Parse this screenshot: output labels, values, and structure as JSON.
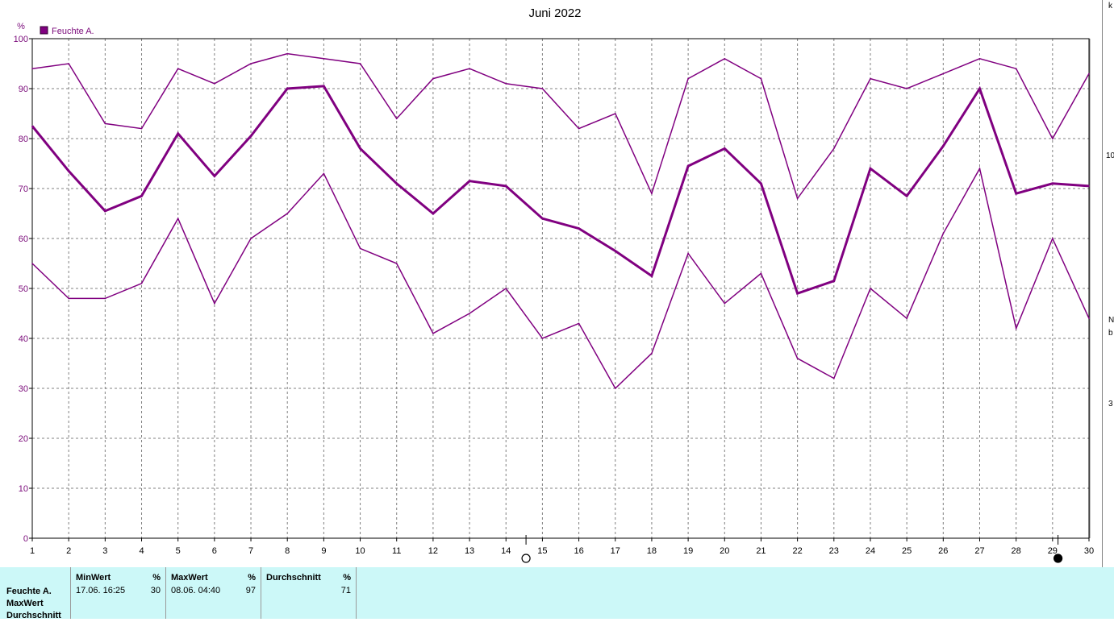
{
  "chart_data": {
    "type": "line",
    "title": "Juni 2022",
    "ylabel": "%",
    "ylim": [
      0,
      100
    ],
    "yticks": [
      0,
      10,
      20,
      30,
      40,
      50,
      60,
      70,
      80,
      90,
      100
    ],
    "x": [
      1,
      2,
      3,
      4,
      5,
      6,
      7,
      8,
      9,
      10,
      11,
      12,
      13,
      14,
      15,
      16,
      17,
      18,
      19,
      20,
      21,
      22,
      23,
      24,
      25,
      26,
      27,
      28,
      29,
      30
    ],
    "xlim": [
      1,
      30
    ],
    "grid": true,
    "legend": {
      "placement": "top-left",
      "entries": [
        "Feuchte A."
      ]
    },
    "color": "#800080",
    "series": [
      {
        "name": "Feuchte A.",
        "values": [
          55,
          48,
          48,
          51,
          64,
          47,
          60,
          65,
          73,
          58,
          55,
          41,
          45,
          50,
          40,
          43,
          30,
          37,
          57,
          47,
          53,
          36,
          32,
          50,
          44,
          61,
          74,
          42,
          60,
          44
        ],
        "width": 1.5
      },
      {
        "name": "Feuchte A.",
        "values": [
          94,
          95,
          83,
          82,
          94,
          91,
          95,
          97,
          96,
          95,
          84,
          92,
          94,
          91,
          90,
          82,
          85,
          69,
          92,
          96,
          92,
          68,
          78,
          92,
          90,
          93,
          96,
          94,
          80,
          93
        ],
        "width": 1.5
      },
      {
        "name": "Feuchte A.",
        "values": [
          82.5,
          73.5,
          65.5,
          68.5,
          81,
          72.5,
          80.5,
          90,
          90.5,
          78,
          71,
          65,
          71.5,
          70.5,
          64,
          62,
          57.5,
          52.5,
          74.5,
          78,
          71,
          49,
          51.5,
          74,
          68.5,
          78.5,
          90,
          69,
          71,
          70.5
        ],
        "width": 3
      }
    ],
    "markers": [
      {
        "x": 14.55,
        "symbol": "new-moon-outline"
      },
      {
        "x": 29.15,
        "symbol": "full-moon-filled"
      }
    ]
  },
  "stats": {
    "row_labels": [
      "Feuchte A.",
      "MaxWert",
      "Durchschnitt"
    ],
    "min": {
      "label": "MinWert",
      "unit": "%",
      "when": "17.06.  16:25",
      "value": "30"
    },
    "max": {
      "label": "MaxWert",
      "unit": "%",
      "when": "08.06.  04:40",
      "value": "97"
    },
    "avg": {
      "label": "Durchschnitt",
      "unit": "%",
      "when": "",
      "value": "71"
    }
  },
  "edge": {
    "top_glyph": "k",
    "mid_glyph": "10",
    "n_glyph": "N",
    "b_glyph": "b",
    "n3_glyph": "3"
  }
}
